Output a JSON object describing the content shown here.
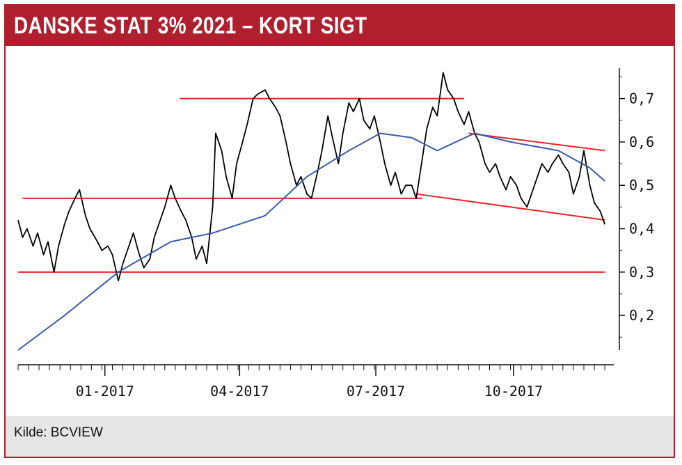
{
  "header": {
    "title": "DANSKE STAT 3% 2021 – KORT SIGT"
  },
  "footer": {
    "source": "Kilde: BCVIEW"
  },
  "colors": {
    "brand_red": "#b01f2e",
    "price_line": "#000000",
    "moving_average": "#3a5aa8",
    "trend_lines": "#e8242a"
  },
  "chart_data": {
    "type": "line",
    "title": "DANSKE STAT 3% 2021 – KORT SIGT",
    "xlabel": "",
    "ylabel": "",
    "x_tick_labels": [
      "01-2017",
      "04-2017",
      "07-2017",
      "10-2017"
    ],
    "y_tick_labels": [
      "0,2",
      "0,3",
      "0,4",
      "0,5",
      "0,6",
      "0,7"
    ],
    "y_ticks": [
      0.2,
      0.3,
      0.4,
      0.5,
      0.6,
      0.7
    ],
    "ylim": [
      0.12,
      0.77
    ],
    "xlim": [
      "2016-11-04",
      "2017-12-07"
    ],
    "grid": false,
    "series": [
      {
        "style": "price",
        "color": "#000000",
        "points": [
          [
            "2016-11-04",
            0.42
          ],
          [
            "2016-11-07",
            0.38
          ],
          [
            "2016-11-10",
            0.4
          ],
          [
            "2016-11-14",
            0.36
          ],
          [
            "2016-11-17",
            0.39
          ],
          [
            "2016-11-21",
            0.34
          ],
          [
            "2016-11-24",
            0.37
          ],
          [
            "2016-11-28",
            0.3
          ],
          [
            "2016-12-01",
            0.36
          ],
          [
            "2016-12-05",
            0.41
          ],
          [
            "2016-12-08",
            0.44
          ],
          [
            "2016-12-12",
            0.47
          ],
          [
            "2016-12-15",
            0.49
          ],
          [
            "2016-12-19",
            0.43
          ],
          [
            "2016-12-22",
            0.4
          ],
          [
            "2016-12-27",
            0.37
          ],
          [
            "2016-12-30",
            0.35
          ],
          [
            "2017-01-03",
            0.36
          ],
          [
            "2017-01-06",
            0.34
          ],
          [
            "2017-01-10",
            0.28
          ],
          [
            "2017-01-13",
            0.32
          ],
          [
            "2017-01-17",
            0.36
          ],
          [
            "2017-01-20",
            0.39
          ],
          [
            "2017-01-24",
            0.34
          ],
          [
            "2017-01-27",
            0.31
          ],
          [
            "2017-01-31",
            0.33
          ],
          [
            "2017-02-03",
            0.38
          ],
          [
            "2017-02-07",
            0.42
          ],
          [
            "2017-02-10",
            0.45
          ],
          [
            "2017-02-14",
            0.5
          ],
          [
            "2017-02-17",
            0.47
          ],
          [
            "2017-02-21",
            0.44
          ],
          [
            "2017-02-24",
            0.42
          ],
          [
            "2017-02-28",
            0.38
          ],
          [
            "2017-03-03",
            0.33
          ],
          [
            "2017-03-07",
            0.36
          ],
          [
            "2017-03-10",
            0.32
          ],
          [
            "2017-03-14",
            0.45
          ],
          [
            "2017-03-16",
            0.62
          ],
          [
            "2017-03-20",
            0.58
          ],
          [
            "2017-03-23",
            0.52
          ],
          [
            "2017-03-27",
            0.47
          ],
          [
            "2017-03-30",
            0.55
          ],
          [
            "2017-04-03",
            0.6
          ],
          [
            "2017-04-06",
            0.64
          ],
          [
            "2017-04-10",
            0.7
          ],
          [
            "2017-04-13",
            0.71
          ],
          [
            "2017-04-18",
            0.72
          ],
          [
            "2017-04-21",
            0.7
          ],
          [
            "2017-04-25",
            0.68
          ],
          [
            "2017-04-28",
            0.66
          ],
          [
            "2017-05-02",
            0.6
          ],
          [
            "2017-05-05",
            0.55
          ],
          [
            "2017-05-09",
            0.5
          ],
          [
            "2017-05-12",
            0.52
          ],
          [
            "2017-05-16",
            0.48
          ],
          [
            "2017-05-19",
            0.47
          ],
          [
            "2017-05-23",
            0.53
          ],
          [
            "2017-05-26",
            0.58
          ],
          [
            "2017-05-30",
            0.66
          ],
          [
            "2017-06-02",
            0.61
          ],
          [
            "2017-06-06",
            0.55
          ],
          [
            "2017-06-09",
            0.62
          ],
          [
            "2017-06-13",
            0.69
          ],
          [
            "2017-06-16",
            0.67
          ],
          [
            "2017-06-20",
            0.7
          ],
          [
            "2017-06-23",
            0.65
          ],
          [
            "2017-06-27",
            0.63
          ],
          [
            "2017-06-30",
            0.66
          ],
          [
            "2017-07-04",
            0.6
          ],
          [
            "2017-07-07",
            0.55
          ],
          [
            "2017-07-11",
            0.5
          ],
          [
            "2017-07-14",
            0.53
          ],
          [
            "2017-07-18",
            0.48
          ],
          [
            "2017-07-21",
            0.5
          ],
          [
            "2017-07-25",
            0.5
          ],
          [
            "2017-07-28",
            0.47
          ],
          [
            "2017-08-01",
            0.56
          ],
          [
            "2017-08-04",
            0.63
          ],
          [
            "2017-08-08",
            0.68
          ],
          [
            "2017-08-11",
            0.66
          ],
          [
            "2017-08-15",
            0.76
          ],
          [
            "2017-08-18",
            0.72
          ],
          [
            "2017-08-22",
            0.7
          ],
          [
            "2017-08-25",
            0.67
          ],
          [
            "2017-08-29",
            0.64
          ],
          [
            "2017-09-01",
            0.67
          ],
          [
            "2017-09-05",
            0.62
          ],
          [
            "2017-09-08",
            0.6
          ],
          [
            "2017-09-12",
            0.55
          ],
          [
            "2017-09-15",
            0.53
          ],
          [
            "2017-09-19",
            0.55
          ],
          [
            "2017-09-22",
            0.52
          ],
          [
            "2017-09-26",
            0.49
          ],
          [
            "2017-09-29",
            0.52
          ],
          [
            "2017-10-03",
            0.5
          ],
          [
            "2017-10-06",
            0.47
          ],
          [
            "2017-10-10",
            0.45
          ],
          [
            "2017-10-13",
            0.48
          ],
          [
            "2017-10-17",
            0.52
          ],
          [
            "2017-10-20",
            0.55
          ],
          [
            "2017-10-24",
            0.53
          ],
          [
            "2017-10-27",
            0.55
          ],
          [
            "2017-10-31",
            0.57
          ],
          [
            "2017-11-03",
            0.55
          ],
          [
            "2017-11-07",
            0.53
          ],
          [
            "2017-11-10",
            0.48
          ],
          [
            "2017-11-14",
            0.52
          ],
          [
            "2017-11-17",
            0.58
          ],
          [
            "2017-11-21",
            0.5
          ],
          [
            "2017-11-24",
            0.46
          ],
          [
            "2017-11-28",
            0.44
          ],
          [
            "2017-12-01",
            0.41
          ]
        ]
      },
      {
        "style": "moving-average",
        "color": "#3a5aa8",
        "points": [
          [
            "2016-11-04",
            0.12
          ],
          [
            "2016-12-05",
            0.2
          ],
          [
            "2017-01-10",
            0.3
          ],
          [
            "2017-02-14",
            0.37
          ],
          [
            "2017-03-14",
            0.39
          ],
          [
            "2017-04-18",
            0.43
          ],
          [
            "2017-05-16",
            0.52
          ],
          [
            "2017-06-13",
            0.58
          ],
          [
            "2017-07-04",
            0.62
          ],
          [
            "2017-07-25",
            0.61
          ],
          [
            "2017-08-11",
            0.58
          ],
          [
            "2017-09-05",
            0.62
          ],
          [
            "2017-09-29",
            0.6
          ],
          [
            "2017-10-31",
            0.58
          ],
          [
            "2017-11-21",
            0.54
          ],
          [
            "2017-12-01",
            0.51
          ]
        ]
      }
    ],
    "trend_lines": [
      {
        "color": "#e8242a",
        "from": [
          "2017-02-20",
          0.7
        ],
        "to": [
          "2017-08-29",
          0.7
        ]
      },
      {
        "color": "#e8242a",
        "from": [
          "2016-11-07",
          0.47
        ],
        "to": [
          "2017-08-01",
          0.47
        ]
      },
      {
        "color": "#e8242a",
        "from": [
          "2016-11-04",
          0.3
        ],
        "to": [
          "2017-12-01",
          0.3
        ]
      },
      {
        "color": "#e8242a",
        "from": [
          "2017-09-01",
          0.62
        ],
        "to": [
          "2017-12-01",
          0.58
        ]
      },
      {
        "color": "#e8242a",
        "from": [
          "2017-07-28",
          0.48
        ],
        "to": [
          "2017-12-01",
          0.42
        ]
      }
    ]
  }
}
